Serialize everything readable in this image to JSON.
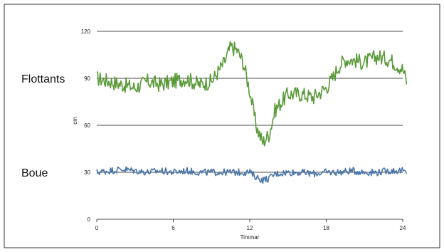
{
  "chart_data": {
    "type": "line",
    "xlabel": "Timmar",
    "ylabel": "cm",
    "xlim": [
      0,
      24
    ],
    "ylim": [
      0,
      120
    ],
    "xticks": [
      0,
      6,
      12,
      18,
      24
    ],
    "yticks": [
      0,
      30,
      60,
      90,
      120
    ],
    "x_tick_labels": [
      "0",
      "6",
      "12",
      "18",
      "24"
    ],
    "y_tick_labels": [
      "0",
      "30",
      "60",
      "90",
      "120"
    ],
    "grid": "horizontal",
    "category_labels": [
      "Flottants",
      "Boue"
    ],
    "series": [
      {
        "color": "#5a9a3a",
        "x": [
          0,
          1,
          2,
          3,
          4,
          5,
          6,
          7,
          8,
          9,
          10,
          10.5,
          11,
          11.5,
          12,
          12.5,
          13,
          13.5,
          14,
          15,
          16,
          17,
          18,
          18.5,
          19,
          19.5,
          20,
          21,
          22,
          23,
          24,
          24.3
        ],
        "y": [
          90,
          88,
          86,
          84,
          88,
          86,
          88,
          90,
          86,
          88,
          100,
          110,
          108,
          100,
          82,
          60,
          49,
          54,
          70,
          80,
          80,
          78,
          84,
          90,
          98,
          102,
          102,
          100,
          104,
          102,
          96,
          88
        ]
      },
      {
        "color": "#4a76a8",
        "x": [
          0,
          1,
          2,
          3,
          4,
          5,
          6,
          7,
          8,
          9,
          10,
          11,
          12,
          12.5,
          13,
          13.5,
          14,
          15,
          16,
          17,
          18,
          19,
          20,
          21,
          22,
          23,
          24,
          24.3
        ],
        "y": [
          30,
          31,
          32,
          31,
          30,
          31,
          30,
          31,
          30,
          30,
          30,
          30,
          30,
          27,
          25,
          26,
          29,
          30,
          30,
          29,
          30,
          30,
          31,
          30,
          30,
          31,
          31,
          29
        ]
      }
    ]
  }
}
